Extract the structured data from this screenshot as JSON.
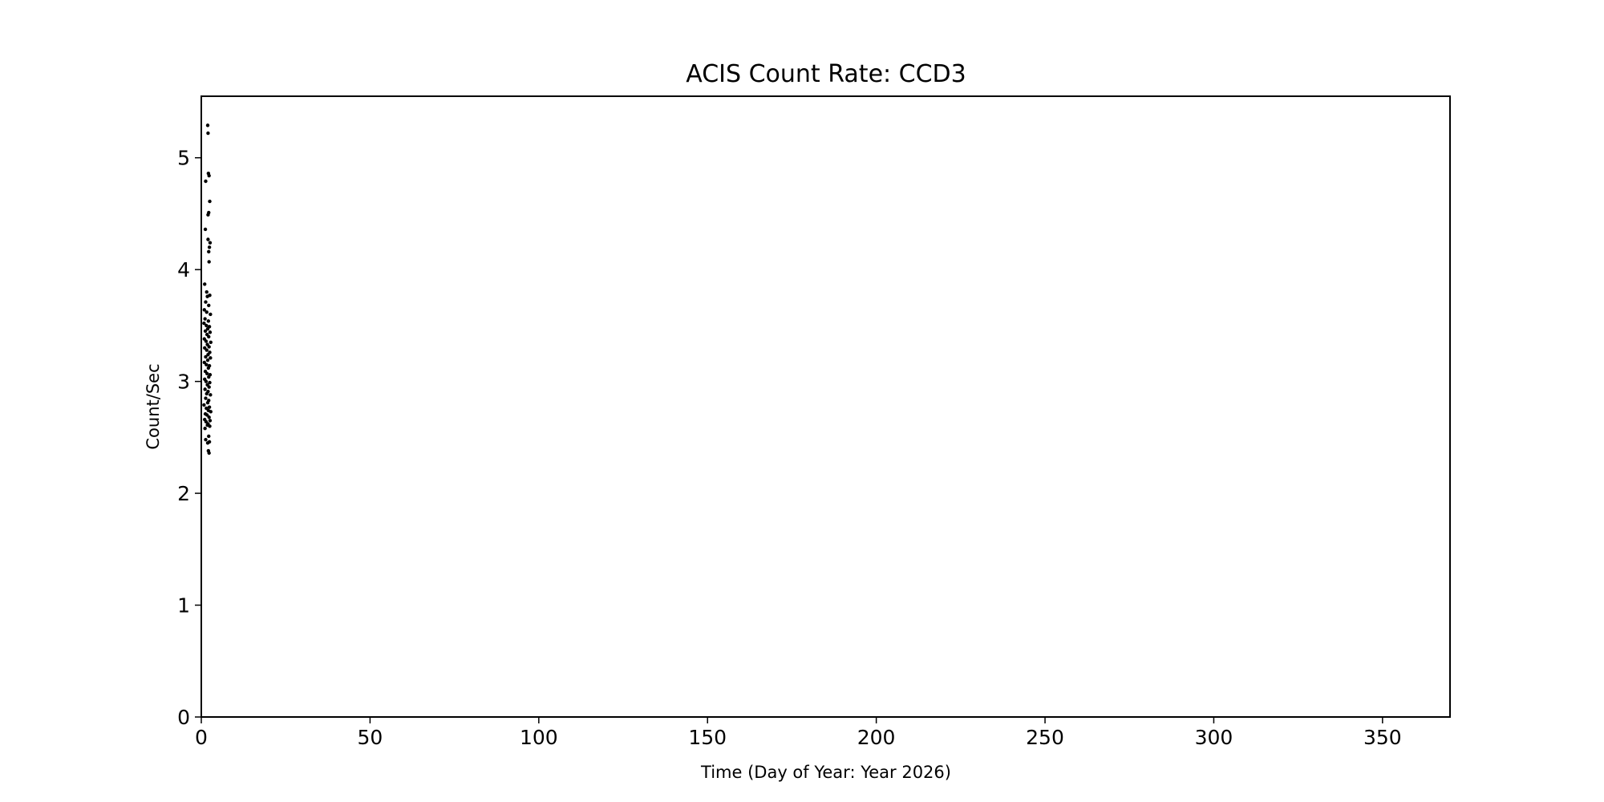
{
  "chart_data": {
    "type": "scatter",
    "title": "ACIS Count Rate: CCD3",
    "xlabel": "Time (Day of Year: Year 2026)",
    "ylabel": "Count/Sec",
    "xlim": [
      0,
      370
    ],
    "ylim": [
      0,
      5.55
    ],
    "xticks": [
      0,
      50,
      100,
      150,
      200,
      250,
      300,
      350
    ],
    "yticks": [
      0,
      1,
      2,
      3,
      4,
      5
    ],
    "grid": false,
    "legend": "none",
    "marker_color": "#000000",
    "series": [
      {
        "points": [
          [
            1.9,
            5.29
          ],
          [
            2.0,
            5.22
          ],
          [
            2.1,
            4.86
          ],
          [
            2.3,
            4.84
          ],
          [
            1.3,
            4.79
          ],
          [
            2.5,
            4.61
          ],
          [
            2.2,
            4.51
          ],
          [
            2.0,
            4.49
          ],
          [
            1.2,
            4.36
          ],
          [
            2.0,
            4.27
          ],
          [
            2.6,
            4.24
          ],
          [
            2.4,
            4.2
          ],
          [
            2.2,
            4.16
          ],
          [
            2.3,
            4.07
          ],
          [
            1.0,
            3.87
          ],
          [
            1.6,
            3.8
          ],
          [
            2.5,
            3.77
          ],
          [
            1.8,
            3.76
          ],
          [
            1.3,
            3.71
          ],
          [
            2.2,
            3.68
          ],
          [
            0.9,
            3.64
          ],
          [
            1.6,
            3.62
          ],
          [
            2.7,
            3.6
          ],
          [
            1.1,
            3.56
          ],
          [
            2.1,
            3.54
          ],
          [
            0.8,
            3.52
          ],
          [
            1.5,
            3.5
          ],
          [
            2.4,
            3.49
          ],
          [
            1.9,
            3.47
          ],
          [
            1.2,
            3.45
          ],
          [
            2.6,
            3.44
          ],
          [
            1.7,
            3.42
          ],
          [
            2.2,
            3.4
          ],
          [
            0.9,
            3.38
          ],
          [
            1.4,
            3.36
          ],
          [
            2.8,
            3.35
          ],
          [
            1.8,
            3.33
          ],
          [
            2.3,
            3.31
          ],
          [
            1.0,
            3.3
          ],
          [
            1.6,
            3.28
          ],
          [
            2.5,
            3.26
          ],
          [
            2.0,
            3.24
          ],
          [
            1.3,
            3.22
          ],
          [
            2.7,
            3.21
          ],
          [
            1.9,
            3.19
          ],
          [
            0.9,
            3.17
          ],
          [
            1.5,
            3.15
          ],
          [
            2.4,
            3.14
          ],
          [
            2.1,
            3.12
          ],
          [
            1.2,
            3.09
          ],
          [
            1.7,
            3.07
          ],
          [
            2.6,
            3.06
          ],
          [
            2.2,
            3.04
          ],
          [
            1.0,
            3.02
          ],
          [
            1.4,
            3.0
          ],
          [
            2.5,
            2.99
          ],
          [
            1.8,
            2.97
          ],
          [
            2.3,
            2.95
          ],
          [
            1.1,
            2.93
          ],
          [
            2.0,
            2.91
          ],
          [
            1.6,
            2.89
          ],
          [
            2.7,
            2.88
          ],
          [
            1.3,
            2.85
          ],
          [
            2.2,
            2.83
          ],
          [
            1.9,
            2.81
          ],
          [
            0.8,
            2.79
          ],
          [
            2.4,
            2.77
          ],
          [
            1.5,
            2.76
          ],
          [
            2.1,
            2.74
          ],
          [
            2.8,
            2.73
          ],
          [
            1.2,
            2.71
          ],
          [
            1.7,
            2.7
          ],
          [
            2.3,
            2.68
          ],
          [
            1.0,
            2.66
          ],
          [
            2.6,
            2.65
          ],
          [
            1.4,
            2.64
          ],
          [
            2.0,
            2.62
          ],
          [
            1.8,
            2.61
          ],
          [
            2.5,
            2.6
          ],
          [
            1.1,
            2.58
          ],
          [
            2.2,
            2.51
          ],
          [
            1.3,
            2.48
          ],
          [
            2.4,
            2.46
          ],
          [
            1.9,
            2.45
          ],
          [
            2.1,
            2.38
          ],
          [
            2.3,
            2.36
          ]
        ]
      }
    ]
  }
}
